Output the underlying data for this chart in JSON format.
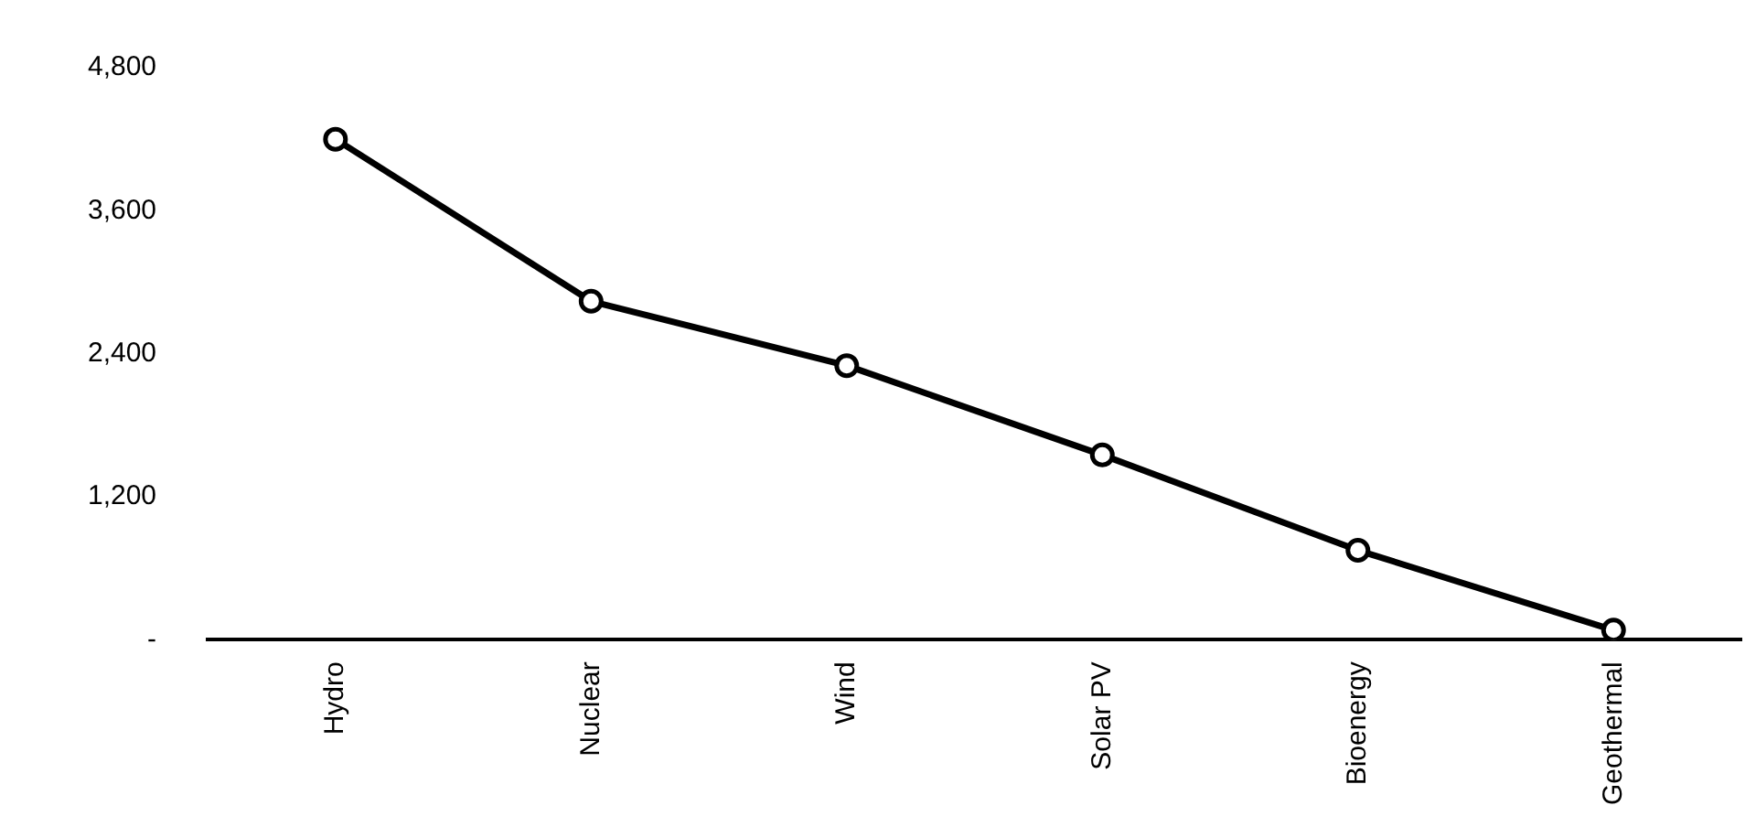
{
  "chart_data": {
    "type": "line",
    "categories": [
      "Hydro",
      "Nuclear",
      "Wind",
      "Solar PV",
      "Bioenergy",
      "Geothermal"
    ],
    "series": [
      {
        "color": "#000000",
        "values": [
          4200,
          2840,
          2300,
          1550,
          750,
          80
        ]
      }
    ],
    "ylim": [
      0,
      4800
    ],
    "yticks": [
      {
        "value": 0,
        "label": "-"
      },
      {
        "value": 1200,
        "label": "1,200"
      },
      {
        "value": 2400,
        "label": "2,400"
      },
      {
        "value": 3600,
        "label": "3,600"
      },
      {
        "value": 4800,
        "label": "4,800"
      }
    ],
    "grid": false,
    "legend": false,
    "marker": "circle",
    "line_style": "solid"
  }
}
